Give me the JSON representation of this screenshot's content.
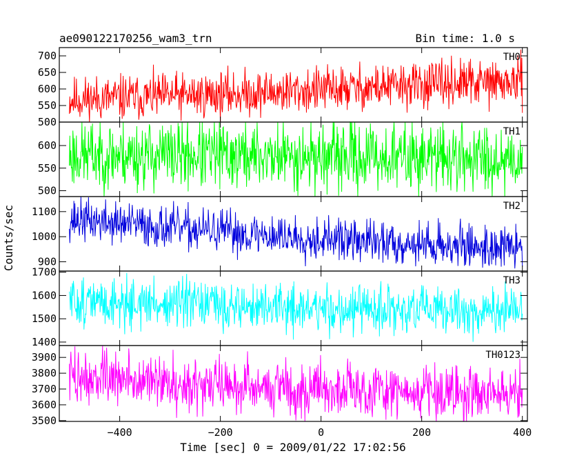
{
  "header": {
    "left_title": "ae090122170256_wam3_trn",
    "right_title": "Bin time: 1.0 s"
  },
  "chart_data": {
    "type": "line",
    "xlabel": "Time [sec] 0 = 2009/01/22 17:02:56",
    "ylabel": "Counts/sec",
    "xlim": [
      -520,
      410
    ],
    "x_data_range": [
      -500,
      400
    ],
    "xticks": [
      -400,
      -200,
      0,
      200,
      400
    ],
    "bin_time_s": 1.0,
    "grid": false,
    "panels": [
      {
        "name": "TH0",
        "color": "#ff0000",
        "ylim": [
          500,
          725
        ],
        "yticks": [
          500,
          550,
          600,
          650,
          700
        ],
        "trend": {
          "x": [
            -500,
            -300,
            -100,
            100,
            300,
            400
          ],
          "y": [
            568,
            578,
            590,
            605,
            618,
            620
          ]
        },
        "noise_amplitude": 34,
        "seed": 11
      },
      {
        "name": "TH1",
        "color": "#00ff00",
        "ylim": [
          487,
          652
        ],
        "yticks": [
          500,
          550,
          600
        ],
        "trend": {
          "x": [
            -500,
            -200,
            100,
            400
          ],
          "y": [
            580,
            578,
            575,
            572
          ]
        },
        "noise_amplitude": 38,
        "seed": 23
      },
      {
        "name": "TH2",
        "color": "#0000dd",
        "ylim": [
          863,
          1160
        ],
        "yticks": [
          900,
          1000,
          1100
        ],
        "trend": {
          "x": [
            -500,
            -300,
            -100,
            100,
            300,
            400
          ],
          "y": [
            1070,
            1035,
            1005,
            980,
            962,
            955
          ]
        },
        "noise_amplitude": 42,
        "seed": 37
      },
      {
        "name": "TH3",
        "color": "#00ffff",
        "ylim": [
          1385,
          1705
        ],
        "yticks": [
          1400,
          1500,
          1600,
          1700
        ],
        "trend": {
          "x": [
            -500,
            -200,
            100,
            400
          ],
          "y": [
            1575,
            1555,
            1535,
            1530
          ]
        },
        "noise_amplitude": 52,
        "seed": 51
      },
      {
        "name": "TH0123",
        "color": "#ff00ff",
        "ylim": [
          3495,
          3975
        ],
        "yticks": [
          3500,
          3600,
          3700,
          3800,
          3900
        ],
        "trend": {
          "x": [
            -500,
            -250,
            0,
            250,
            400
          ],
          "y": [
            3780,
            3730,
            3700,
            3680,
            3670
          ]
        },
        "noise_amplitude": 85,
        "seed": 73
      }
    ]
  }
}
